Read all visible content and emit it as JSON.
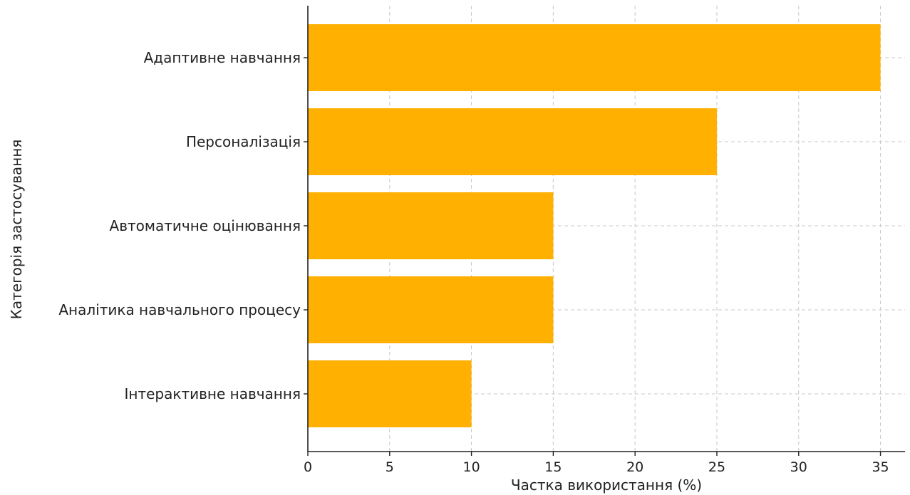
{
  "chart_data": {
    "type": "bar",
    "orientation": "horizontal",
    "title": "",
    "xlabel": "Частка використання (%)",
    "ylabel": "Категорія застосування",
    "categories": [
      "Адаптивне навчання",
      "Персоналізація",
      "Автоматичне оцінювання",
      "Аналітика навчального процесу",
      "Інтерактивне навчання"
    ],
    "values": [
      35,
      25,
      15,
      15,
      10
    ],
    "xlim": [
      0,
      36.5
    ],
    "xticks": [
      0,
      5,
      10,
      15,
      20,
      25,
      30,
      35
    ],
    "grid": true,
    "bar_color": "#ffb000"
  }
}
